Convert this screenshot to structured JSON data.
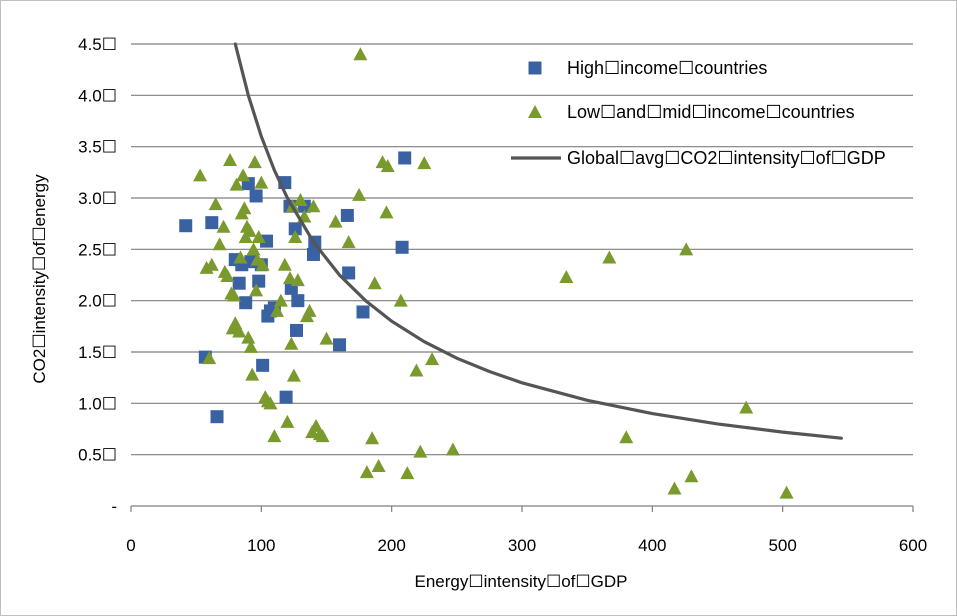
{
  "chart_data": {
    "type": "scatter",
    "title": "",
    "xlabel": "Energy☐intensity☐of☐GDP",
    "ylabel": "CO2☐intensity☐of☐energy",
    "xlim": [
      0,
      600
    ],
    "ylim": [
      0,
      4.5
    ],
    "grid": "horizontal",
    "legend_position": "top-right",
    "x_ticks": [
      {
        "value": 0,
        "label": "0"
      },
      {
        "value": 100,
        "label": "100"
      },
      {
        "value": 200,
        "label": "200"
      },
      {
        "value": 300,
        "label": "300"
      },
      {
        "value": 400,
        "label": "400"
      },
      {
        "value": 500,
        "label": "500"
      },
      {
        "value": 600,
        "label": "600"
      }
    ],
    "y_ticks": [
      {
        "value": 0,
        "label": "-"
      },
      {
        "value": 0.5,
        "label": "0.5☐"
      },
      {
        "value": 1.0,
        "label": "1.0☐"
      },
      {
        "value": 1.5,
        "label": "1.5☐"
      },
      {
        "value": 2.0,
        "label": "2.0☐"
      },
      {
        "value": 2.5,
        "label": "2.5☐"
      },
      {
        "value": 3.0,
        "label": "3.0☐"
      },
      {
        "value": 3.5,
        "label": "3.5☐"
      },
      {
        "value": 4.0,
        "label": "4.0☐"
      },
      {
        "value": 4.5,
        "label": "4.5☐"
      }
    ],
    "series": [
      {
        "name": "High☐income☐countries",
        "marker": "square",
        "color": "#3a62a3",
        "points": [
          [
            42,
            2.73
          ],
          [
            57,
            1.45
          ],
          [
            62,
            2.76
          ],
          [
            66,
            0.87
          ],
          [
            80,
            2.4
          ],
          [
            83,
            2.17
          ],
          [
            85,
            2.35
          ],
          [
            88,
            1.98
          ],
          [
            90,
            3.14
          ],
          [
            92,
            2.38
          ],
          [
            96,
            3.02
          ],
          [
            98,
            2.19
          ],
          [
            100,
            2.35
          ],
          [
            101,
            1.37
          ],
          [
            104,
            2.58
          ],
          [
            105,
            1.85
          ],
          [
            107,
            1.9
          ],
          [
            110,
            1.93
          ],
          [
            118,
            3.15
          ],
          [
            119,
            1.06
          ],
          [
            122,
            2.92
          ],
          [
            123,
            2.12
          ],
          [
            126,
            2.7
          ],
          [
            127,
            1.71
          ],
          [
            128,
            2.0
          ],
          [
            133,
            2.92
          ],
          [
            140,
            2.45
          ],
          [
            141,
            2.57
          ],
          [
            160,
            1.57
          ],
          [
            166,
            2.83
          ],
          [
            167,
            2.27
          ],
          [
            178,
            1.89
          ],
          [
            210,
            3.39
          ],
          [
            208,
            2.52
          ]
        ]
      },
      {
        "name": "Low☐and☐mid☐income☐countries",
        "marker": "triangle",
        "color": "#7a9a2e",
        "points": [
          [
            53,
            3.22
          ],
          [
            58,
            2.32
          ],
          [
            60,
            1.44
          ],
          [
            62,
            2.35
          ],
          [
            65,
            2.94
          ],
          [
            68,
            2.55
          ],
          [
            71,
            2.72
          ],
          [
            72,
            2.28
          ],
          [
            74,
            2.24
          ],
          [
            76,
            3.37
          ],
          [
            77,
            2.07
          ],
          [
            78,
            1.73
          ],
          [
            79,
            2.05
          ],
          [
            80,
            1.78
          ],
          [
            81,
            3.13
          ],
          [
            83,
            1.7
          ],
          [
            84,
            2.42
          ],
          [
            85,
            2.85
          ],
          [
            86,
            3.22
          ],
          [
            87,
            2.9
          ],
          [
            88,
            2.62
          ],
          [
            89,
            2.72
          ],
          [
            90,
            1.64
          ],
          [
            91,
            2.68
          ],
          [
            92,
            1.55
          ],
          [
            93,
            1.28
          ],
          [
            94,
            2.5
          ],
          [
            95,
            3.35
          ],
          [
            96,
            2.1
          ],
          [
            97,
            2.4
          ],
          [
            98,
            2.62
          ],
          [
            100,
            3.15
          ],
          [
            101,
            2.35
          ],
          [
            103,
            1.06
          ],
          [
            105,
            1.02
          ],
          [
            107,
            1.0
          ],
          [
            110,
            0.68
          ],
          [
            112,
            1.9
          ],
          [
            115,
            2.0
          ],
          [
            118,
            2.35
          ],
          [
            120,
            0.82
          ],
          [
            122,
            2.22
          ],
          [
            123,
            1.58
          ],
          [
            124,
            2.92
          ],
          [
            125,
            1.27
          ],
          [
            126,
            2.62
          ],
          [
            128,
            2.2
          ],
          [
            130,
            2.98
          ],
          [
            133,
            2.82
          ],
          [
            135,
            1.85
          ],
          [
            137,
            1.9
          ],
          [
            139,
            0.72
          ],
          [
            140,
            2.92
          ],
          [
            142,
            0.78
          ],
          [
            145,
            0.7
          ],
          [
            147,
            0.68
          ],
          [
            150,
            1.63
          ],
          [
            157,
            2.77
          ],
          [
            167,
            2.57
          ],
          [
            175,
            3.03
          ],
          [
            176,
            4.4
          ],
          [
            181,
            0.33
          ],
          [
            185,
            0.66
          ],
          [
            187,
            2.17
          ],
          [
            190,
            0.39
          ],
          [
            193,
            3.35
          ],
          [
            196,
            2.86
          ],
          [
            197,
            3.31
          ],
          [
            207,
            2.0
          ],
          [
            212,
            0.32
          ],
          [
            219,
            1.32
          ],
          [
            222,
            0.53
          ],
          [
            225,
            3.34
          ],
          [
            231,
            1.43
          ],
          [
            247,
            0.55
          ],
          [
            334,
            2.23
          ],
          [
            367,
            2.42
          ],
          [
            380,
            0.67
          ],
          [
            417,
            0.17
          ],
          [
            426,
            2.5
          ],
          [
            430,
            0.29
          ],
          [
            472,
            0.96
          ],
          [
            503,
            0.13
          ]
        ]
      },
      {
        "name": "Global☐avg☐CO2☐intensity☐of☐GDP",
        "type": "line",
        "color": "#555555",
        "points": [
          [
            80,
            4.5
          ],
          [
            90,
            4.0
          ],
          [
            100,
            3.6
          ],
          [
            110,
            3.27
          ],
          [
            120,
            3.0
          ],
          [
            140,
            2.57
          ],
          [
            160,
            2.25
          ],
          [
            180,
            2.0
          ],
          [
            200,
            1.8
          ],
          [
            225,
            1.6
          ],
          [
            250,
            1.44
          ],
          [
            275,
            1.31
          ],
          [
            300,
            1.2
          ],
          [
            350,
            1.03
          ],
          [
            400,
            0.9
          ],
          [
            450,
            0.8
          ],
          [
            500,
            0.72
          ],
          [
            545,
            0.66
          ]
        ]
      }
    ]
  }
}
